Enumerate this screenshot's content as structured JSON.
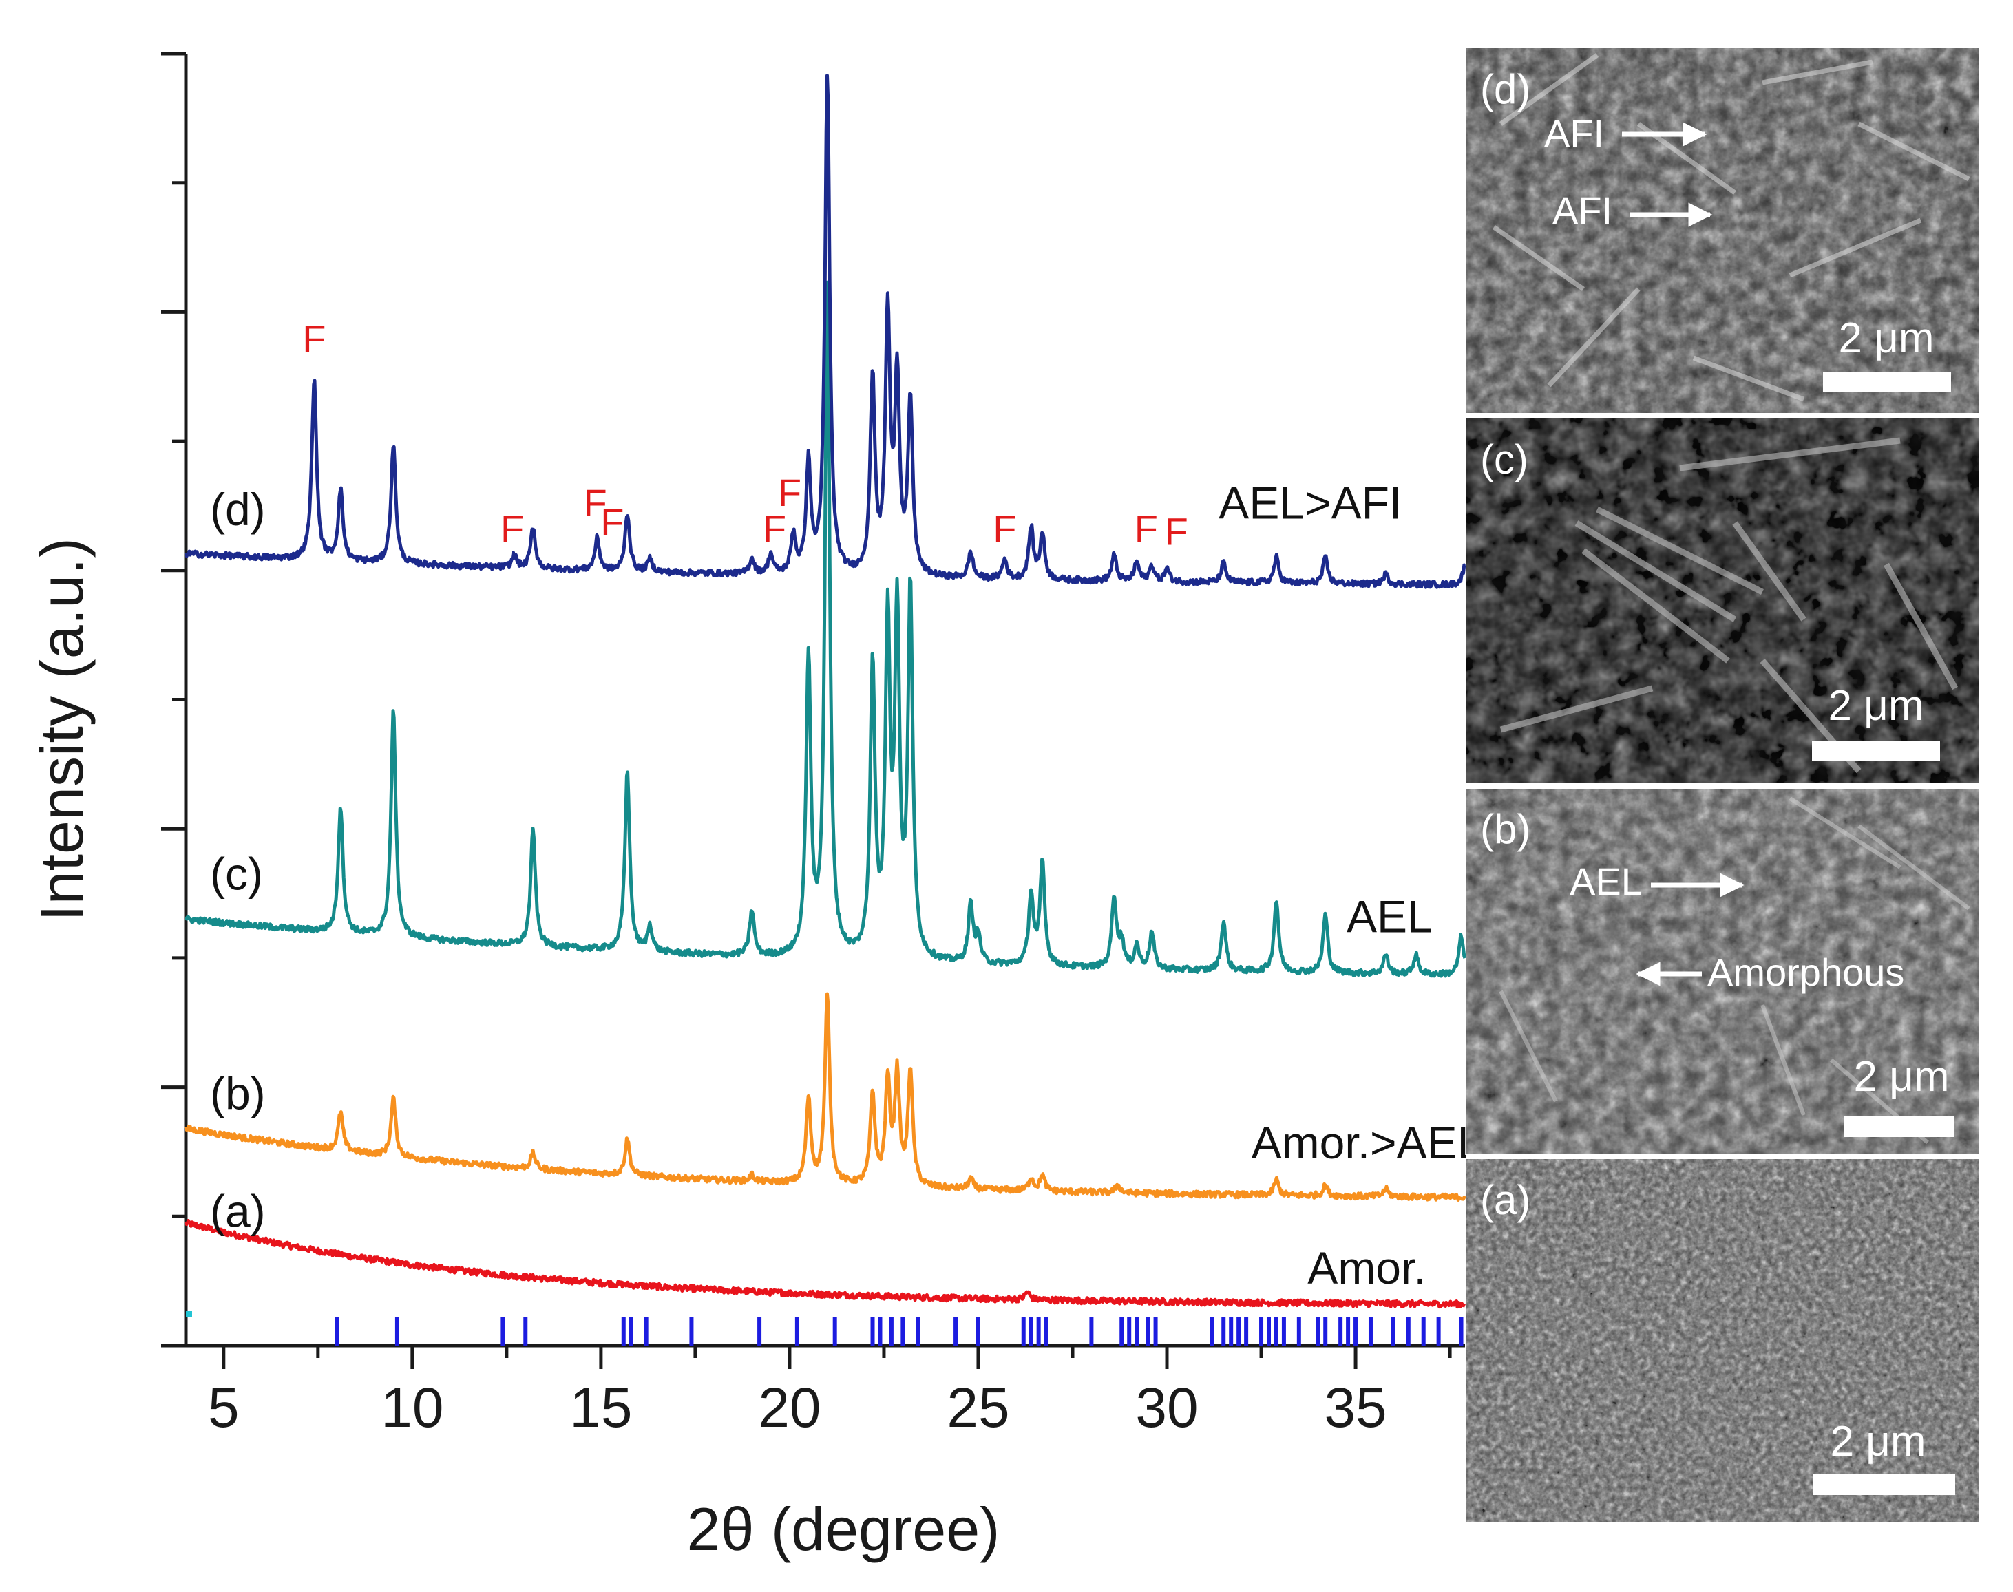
{
  "chart_data": {
    "type": "line",
    "xlabel": "2θ (degree)",
    "ylabel": "Intensity (a.u.)",
    "xlim": [
      4,
      37.9
    ],
    "x_ticks": [
      5,
      10,
      15,
      20,
      25,
      30,
      35
    ],
    "x_tick_labels": [
      "5",
      "10",
      "15",
      "20",
      "25",
      "30",
      "35"
    ],
    "ylim": [
      0,
      10
    ],
    "series": [
      {
        "id": "a",
        "label": "(a)",
        "name": "Amor.",
        "color": "#e8141c",
        "baseline_start": 0.95,
        "baseline_end": 0.31,
        "decay": 4,
        "peaks": [
          [
            26.3,
            0.06
          ]
        ]
      },
      {
        "id": "b",
        "label": "(b)",
        "name": "Amor.>AEL",
        "color": "#f7901e",
        "baseline_start": 1.68,
        "baseline_end": 1.12,
        "decay": 3,
        "peaks": [
          [
            8.1,
            0.3
          ],
          [
            9.5,
            0.45
          ],
          [
            13.2,
            0.12
          ],
          [
            15.7,
            0.28
          ],
          [
            19.0,
            0.05
          ],
          [
            20.5,
            0.65
          ],
          [
            21.0,
            1.45
          ],
          [
            22.2,
            0.7
          ],
          [
            22.6,
            0.8
          ],
          [
            22.85,
            0.85
          ],
          [
            23.2,
            0.9
          ],
          [
            24.8,
            0.08
          ],
          [
            26.4,
            0.1
          ],
          [
            26.7,
            0.12
          ],
          [
            28.7,
            0.06
          ],
          [
            32.9,
            0.12
          ],
          [
            34.2,
            0.08
          ],
          [
            35.8,
            0.06
          ]
        ]
      },
      {
        "id": "c",
        "label": "(c)",
        "name": "AEL",
        "color": "#158b8b",
        "baseline_start": 3.3,
        "baseline_end": 2.8,
        "decay": 2,
        "peaks": [
          [
            8.1,
            0.98
          ],
          [
            9.5,
            1.75
          ],
          [
            13.2,
            0.9
          ],
          [
            15.7,
            1.4
          ],
          [
            16.3,
            0.2
          ],
          [
            19.0,
            0.35
          ],
          [
            20.5,
            2.3
          ],
          [
            21.0,
            5.2
          ],
          [
            22.2,
            2.25
          ],
          [
            22.6,
            2.55
          ],
          [
            22.85,
            2.6
          ],
          [
            23.2,
            2.85
          ],
          [
            24.8,
            0.45
          ],
          [
            25.0,
            0.2
          ],
          [
            26.4,
            0.55
          ],
          [
            26.7,
            0.8
          ],
          [
            28.6,
            0.55
          ],
          [
            28.8,
            0.2
          ],
          [
            29.2,
            0.18
          ],
          [
            29.6,
            0.28
          ],
          [
            31.5,
            0.38
          ],
          [
            32.9,
            0.55
          ],
          [
            34.2,
            0.45
          ],
          [
            35.8,
            0.15
          ],
          [
            36.6,
            0.15
          ],
          [
            37.8,
            0.3
          ]
        ]
      },
      {
        "id": "d",
        "label": "(d)",
        "name": "AEL>AFI",
        "color": "#1c2a8c",
        "baseline_start": 6.13,
        "baseline_end": 5.85,
        "decay": 2,
        "peaks": [
          [
            7.4,
            1.4
          ],
          [
            8.1,
            0.55
          ],
          [
            9.5,
            0.92
          ],
          [
            12.7,
            0.1
          ],
          [
            13.2,
            0.32
          ],
          [
            14.9,
            0.25
          ],
          [
            15.7,
            0.45
          ],
          [
            16.3,
            0.1
          ],
          [
            19.0,
            0.12
          ],
          [
            19.5,
            0.15
          ],
          [
            20.1,
            0.3
          ],
          [
            20.5,
            0.85
          ],
          [
            21.0,
            3.85
          ],
          [
            22.2,
            1.5
          ],
          [
            22.6,
            2.0
          ],
          [
            22.85,
            1.5
          ],
          [
            23.2,
            1.35
          ],
          [
            24.8,
            0.2
          ],
          [
            25.7,
            0.15
          ],
          [
            26.4,
            0.4
          ],
          [
            26.7,
            0.35
          ],
          [
            28.6,
            0.2
          ],
          [
            29.2,
            0.15
          ],
          [
            29.6,
            0.12
          ],
          [
            30.0,
            0.1
          ],
          [
            31.5,
            0.15
          ],
          [
            32.9,
            0.2
          ],
          [
            34.2,
            0.2
          ],
          [
            35.8,
            0.08
          ],
          [
            37.9,
            0.15
          ]
        ]
      }
    ],
    "f_markers": [
      {
        "text": "F",
        "x": 7.4,
        "y": 7.69
      },
      {
        "text": "F",
        "x": 12.65,
        "y": 6.22
      },
      {
        "text": "F",
        "x": 14.85,
        "y": 6.42
      },
      {
        "text": "F",
        "x": 15.3,
        "y": 6.27
      },
      {
        "text": "F",
        "x": 19.6,
        "y": 6.22
      },
      {
        "text": "F",
        "x": 20.0,
        "y": 6.5
      },
      {
        "text": "F",
        "x": 25.7,
        "y": 6.22
      },
      {
        "text": "F",
        "x": 29.45,
        "y": 6.22
      },
      {
        "text": "F",
        "x": 30.25,
        "y": 6.2
      }
    ],
    "reference_ticks": [
      8.0,
      9.6,
      12.4,
      13.0,
      15.6,
      15.8,
      16.2,
      17.4,
      19.2,
      20.2,
      21.2,
      22.2,
      22.4,
      22.7,
      23.0,
      23.4,
      24.4,
      25.0,
      26.2,
      26.4,
      26.6,
      26.8,
      28.0,
      28.8,
      29.0,
      29.2,
      29.5,
      29.7,
      31.2,
      31.5,
      31.7,
      31.9,
      32.1,
      32.5,
      32.7,
      32.9,
      33.1,
      33.5,
      34.0,
      34.2,
      34.6,
      34.8,
      35.0,
      35.4,
      36.0,
      36.4,
      36.8,
      37.2,
      37.8
    ],
    "reference_tick_color": "#1c1ce0"
  },
  "sem_panels": [
    {
      "label": "(d)",
      "scale_text": "2 μm",
      "annotations": [
        "AFI",
        "AFI"
      ]
    },
    {
      "label": "(c)",
      "scale_text": "2 μm",
      "annotations": []
    },
    {
      "label": "(b)",
      "scale_text": "2 μm",
      "annotations": [
        "AEL",
        "Amorphous"
      ]
    },
    {
      "label": "(a)",
      "scale_text": "2 μm",
      "annotations": []
    }
  ]
}
